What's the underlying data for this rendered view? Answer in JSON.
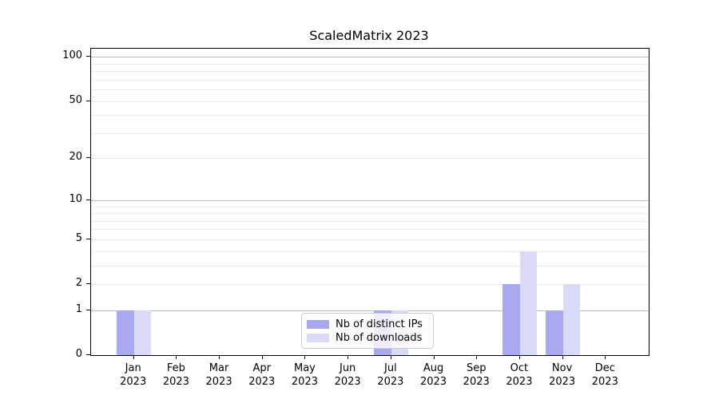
{
  "chart_data": {
    "type": "bar",
    "title": "ScaledMatrix 2023",
    "categories": [
      "Jan",
      "Feb",
      "Mar",
      "Apr",
      "May",
      "Jun",
      "Jul",
      "Aug",
      "Sep",
      "Oct",
      "Nov",
      "Dec"
    ],
    "category_year": "2023",
    "series": [
      {
        "name": "Nb of distinct IPs",
        "color": "#a9a9f2",
        "values": [
          1,
          0,
          0,
          0,
          0,
          0,
          1,
          0,
          0,
          2,
          1,
          0
        ]
      },
      {
        "name": "Nb of downloads",
        "color": "#d9d9f8",
        "values": [
          1,
          0,
          0,
          0,
          0,
          0,
          1,
          0,
          0,
          4,
          2,
          0
        ]
      }
    ],
    "xlabel": "",
    "ylabel": "",
    "yaxis": {
      "scale": "log1p",
      "labeled_ticks": [
        0,
        1,
        2,
        5,
        10,
        20,
        50,
        100
      ],
      "decade_gridlines": [
        1,
        10,
        100
      ],
      "minor_gridlines": [
        2,
        3,
        4,
        5,
        6,
        7,
        8,
        9,
        20,
        30,
        40,
        50,
        60,
        70,
        80,
        90
      ],
      "ylim": [
        0,
        115
      ]
    },
    "grid": true,
    "legend_position": "lower center"
  },
  "colors": {
    "grid_major": "#bdbdbd",
    "grid_minor": "#eaeaea",
    "spine": "#000000",
    "background": "#ffffff"
  }
}
